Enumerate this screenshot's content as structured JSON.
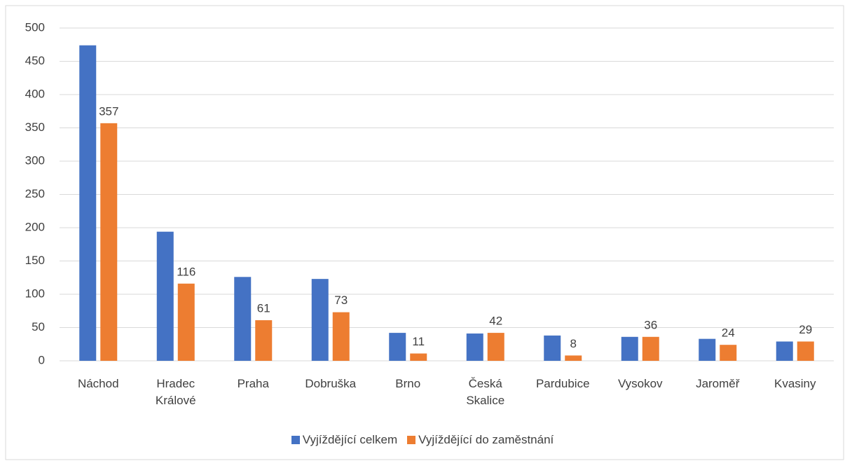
{
  "chart_data": {
    "type": "bar",
    "categories": [
      "Náchod",
      "Hradec Králové",
      "Praha",
      "Dobruška",
      "Brno",
      "Česká Skalice",
      "Pardubice",
      "Vysokov",
      "Jaroměř",
      "Kvasiny"
    ],
    "series": [
      {
        "name": "Vyjíždějící celkem",
        "color": "#4472c4",
        "values": [
          474,
          194,
          126,
          123,
          42,
          41,
          38,
          36,
          33,
          29
        ],
        "data_labels": false
      },
      {
        "name": "Vyjíždějící do zaměstnání",
        "color": "#ed7d31",
        "values": [
          357,
          116,
          61,
          73,
          11,
          42,
          8,
          36,
          24,
          29
        ],
        "data_labels": true
      }
    ],
    "ylim": [
      0,
      500
    ],
    "yticks": [
      0,
      50,
      100,
      150,
      200,
      250,
      300,
      350,
      400,
      450,
      500
    ],
    "grid": true,
    "legend": "bottom"
  }
}
